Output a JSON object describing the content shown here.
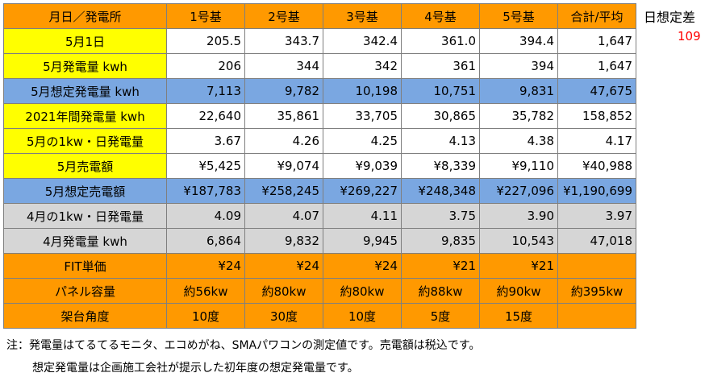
{
  "header": {
    "corner": "月日／発電所",
    "columns": [
      "1号基",
      "2号基",
      "3号基",
      "4号基",
      "5号基",
      "合計/平均"
    ]
  },
  "rows": [
    {
      "label": "5月1日",
      "cells": [
        "205.5",
        "343.7",
        "342.4",
        "361.0",
        "394.4",
        "1,647"
      ]
    },
    {
      "label": "5月発電量 kwh",
      "cells": [
        "206",
        "344",
        "342",
        "361",
        "394",
        "1,647"
      ]
    },
    {
      "label": "5月想定発電量 kwh",
      "cells": [
        "7,113",
        "9,782",
        "10,198",
        "10,751",
        "9,831",
        "47,675"
      ]
    },
    {
      "label": "2021年間発電量 kwh",
      "cells": [
        "22,640",
        "35,861",
        "33,705",
        "30,865",
        "35,782",
        "158,852"
      ]
    },
    {
      "label": "5月の1kw・日発電量",
      "cells": [
        "3.67",
        "4.26",
        "4.25",
        "4.13",
        "4.38",
        "4.17"
      ]
    },
    {
      "label": "5月売電額",
      "cells": [
        "¥5,425",
        "¥9,074",
        "¥9,039",
        "¥8,339",
        "¥9,110",
        "¥40,988"
      ]
    },
    {
      "label": "5月想定売電額",
      "cells": [
        "¥187,783",
        "¥258,245",
        "¥269,227",
        "¥248,348",
        "¥227,096",
        "¥1,190,699"
      ]
    },
    {
      "label": "4月の1kw・日発電量",
      "cells": [
        "4.09",
        "4.07",
        "4.11",
        "3.75",
        "3.90",
        "3.97"
      ]
    },
    {
      "label": "4月発電量 kwh",
      "cells": [
        "6,864",
        "9,832",
        "9,945",
        "9,835",
        "10,543",
        "47,018"
      ]
    },
    {
      "label": "FIT単価",
      "cells": [
        "¥24",
        "¥24",
        "¥24",
        "¥21",
        "¥21",
        ""
      ]
    },
    {
      "label": "パネル容量",
      "cells": [
        "約56kw",
        "約80kw",
        "約80kw",
        "約88kw",
        "約90kw",
        "約395kw"
      ]
    },
    {
      "label": "架台角度",
      "cells": [
        "10度",
        "30度",
        "10度",
        "5度",
        "15度",
        ""
      ]
    }
  ],
  "side": {
    "label": "日想定差",
    "value": "109"
  },
  "notes": [
    "注：発電量はてるてるモニタ、エコめがね、SMAパワコンの測定値です。売電額は税込です。",
    "想定発電量は企画施工会社が提示した初年度の想定発電量です。"
  ],
  "colors": {
    "orange": "#ff9900",
    "yellow": "#ffff00",
    "blue": "#7aa7e1",
    "gray": "#d6d6d6",
    "red": "#ff0000"
  }
}
